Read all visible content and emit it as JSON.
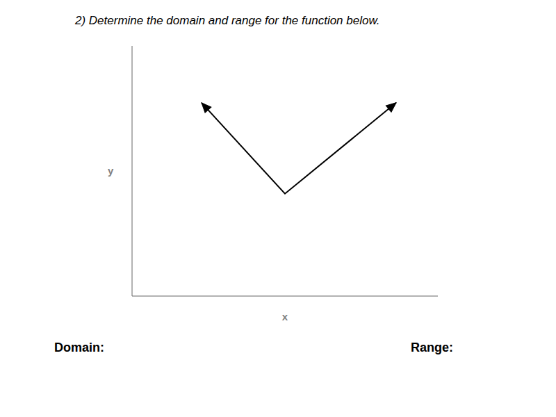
{
  "chart_data": {
    "type": "line",
    "title": "2) Determine the domain and range for the  function below.",
    "x": [
      -3,
      0,
      4
    ],
    "values": [
      3,
      -1,
      3
    ],
    "color": "#000000",
    "xlim": [
      -5.5,
      5.5
    ],
    "ylim": [
      -5.5,
      5.5
    ],
    "xticks": [
      -5,
      -4,
      -3,
      -2,
      -1,
      0,
      1,
      2,
      3,
      4,
      5
    ],
    "yticks": [
      -5,
      -4,
      -3,
      -2,
      -1,
      0,
      1,
      2,
      3,
      4,
      5
    ],
    "grid": true,
    "tick_labels": false,
    "xlabel": "x",
    "ylabel": "y",
    "annotations": [
      "Domain:",
      "Range:"
    ]
  }
}
